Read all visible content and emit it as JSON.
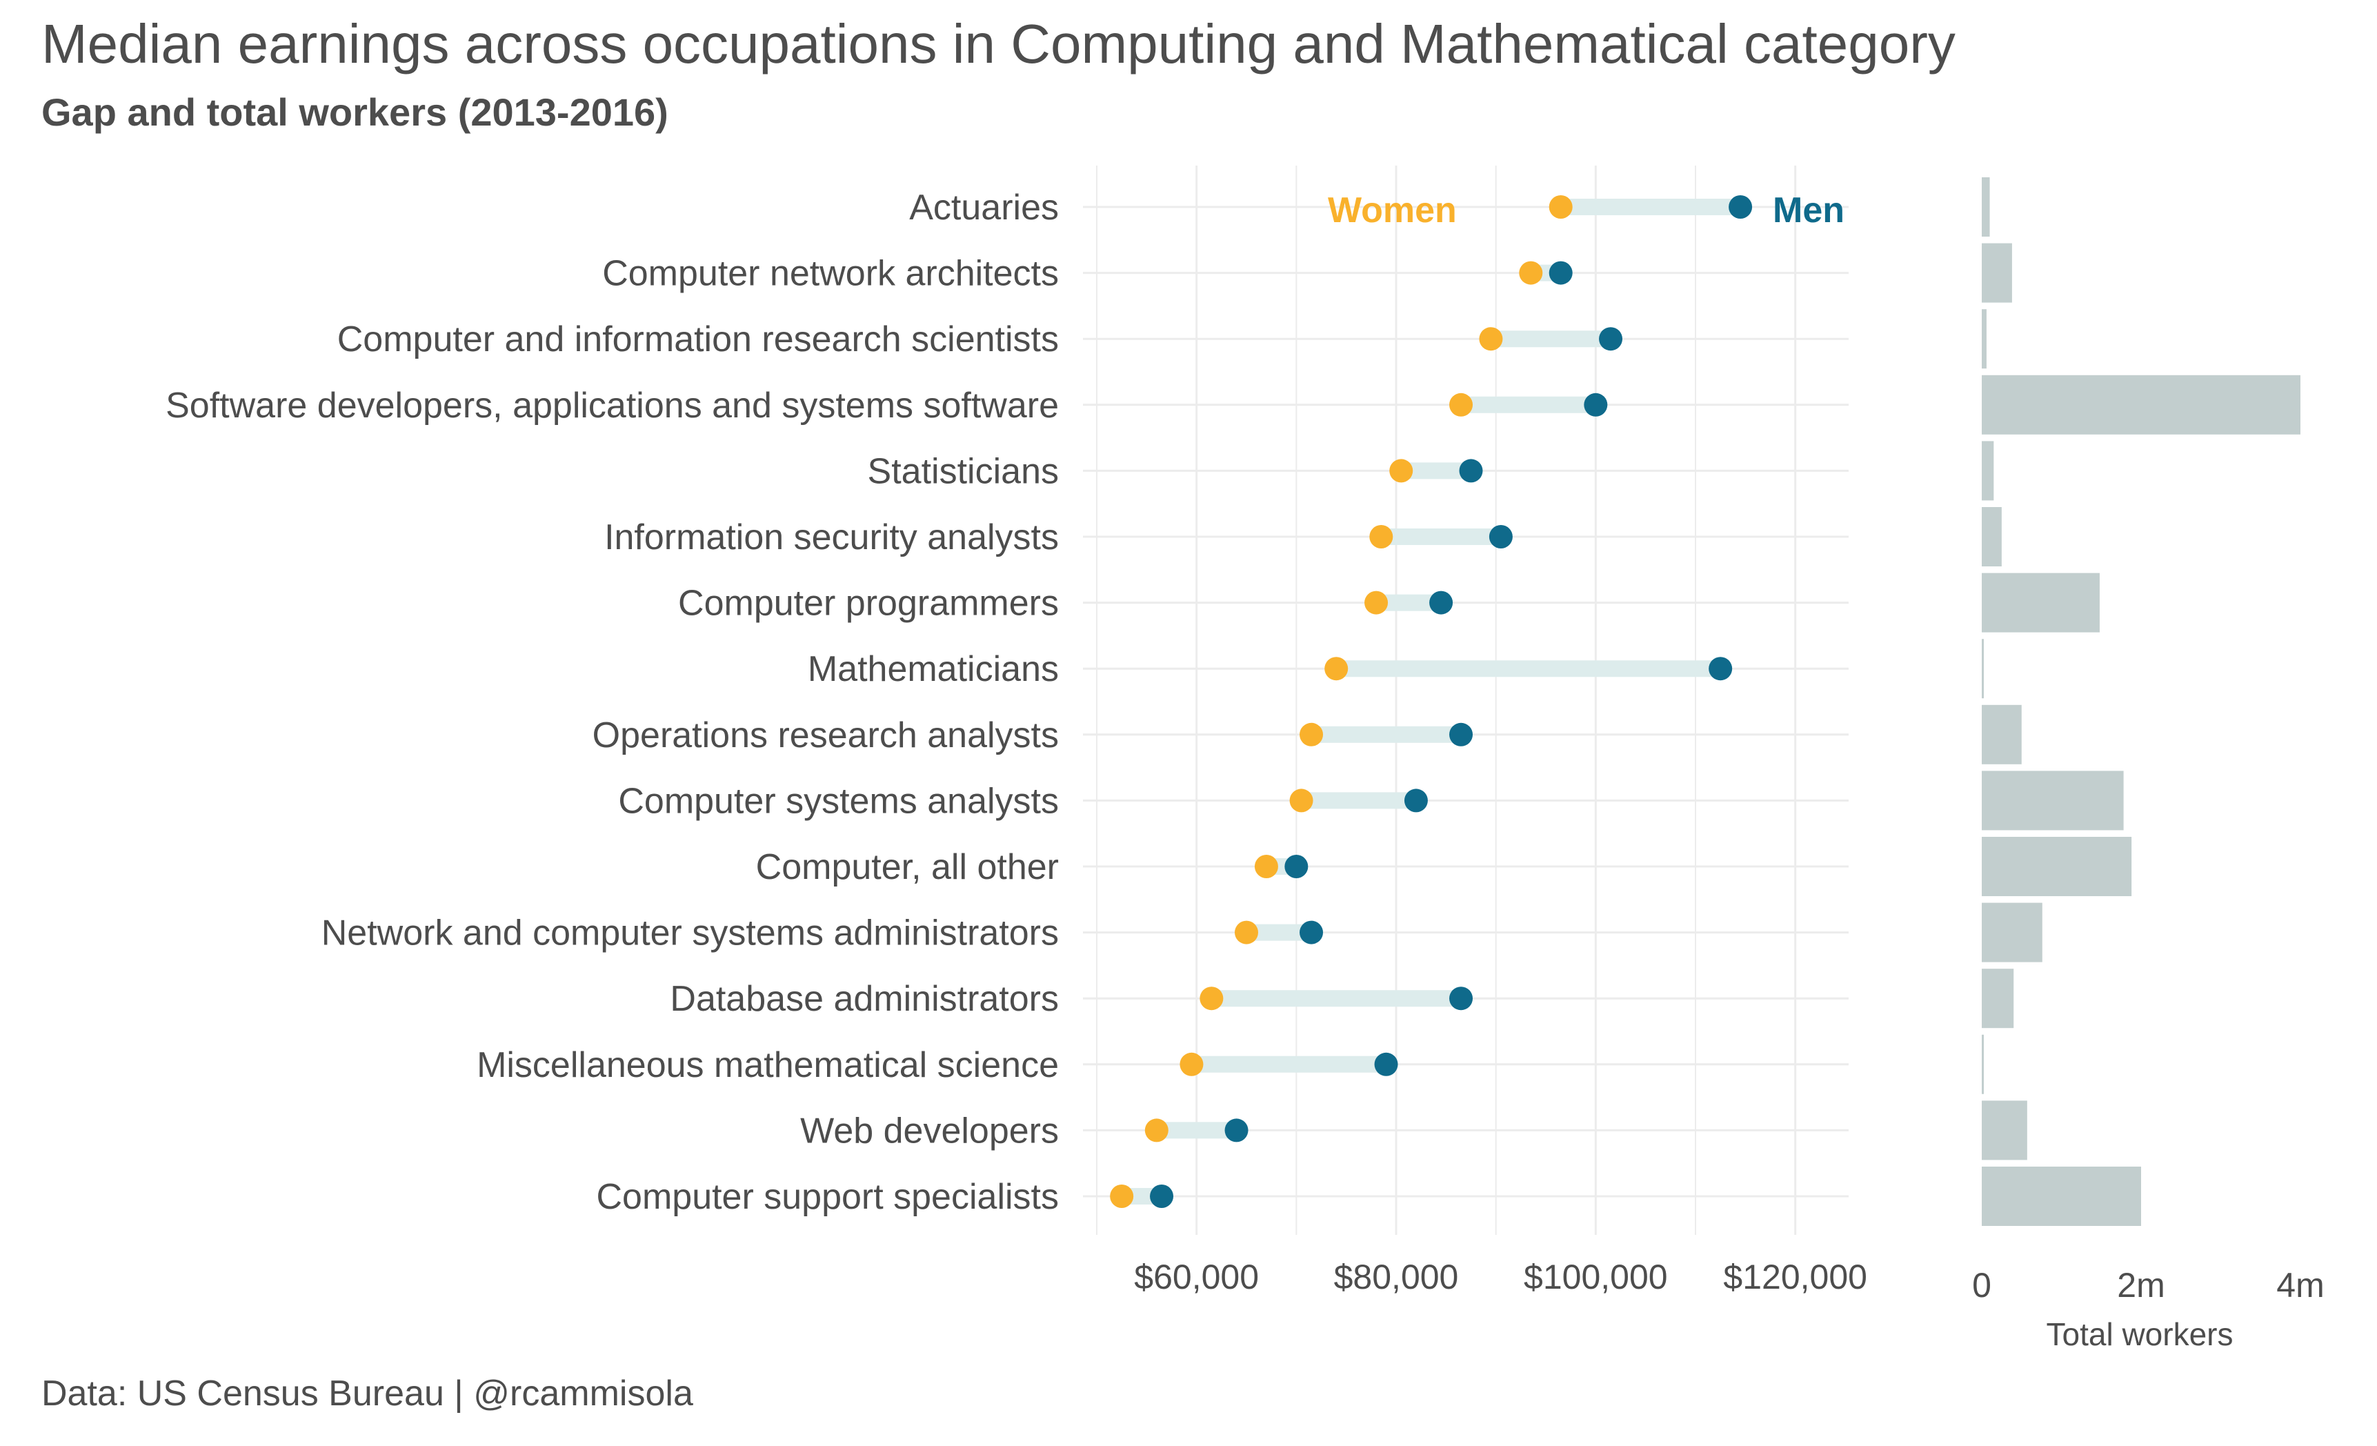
{
  "title": "Median earnings across occupations in Computing and Mathematical category",
  "subtitle": "Gap and total workers (2013-2016)",
  "caption": "Data: US Census Bureau | @rcammisola",
  "colors": {
    "women": "#f9b12c",
    "men": "#0f6a8b",
    "gap": "#ddecec",
    "bars": "#c2cece",
    "grid": "#ececec"
  },
  "chart_data": [
    {
      "type": "dumbbell",
      "legend": {
        "women_label": "Women",
        "men_label": "Men",
        "placement": "inline-top"
      },
      "xlim": [
        50000,
        125000
      ],
      "x_ticks": [
        60000,
        80000,
        100000,
        120000
      ],
      "x_tick_labels": [
        "$60,000",
        "$80,000",
        "$100,000",
        "$120,000"
      ],
      "grid": true,
      "categories": [
        "Actuaries",
        "Computer network architects",
        "Computer and information research scientists",
        "Software developers, applications and systems software",
        "Statisticians",
        "Information security analysts",
        "Computer programmers",
        "Mathematicians",
        "Operations research analysts",
        "Computer systems analysts",
        "Computer, all other",
        "Network and computer systems administrators",
        "Database administrators",
        "Miscellaneous mathematical science",
        "Web developers",
        "Computer support specialists"
      ],
      "series": [
        {
          "name": "Women",
          "values": [
            96500,
            93500,
            89500,
            86500,
            80500,
            78500,
            78000,
            74000,
            71500,
            70500,
            67000,
            65000,
            61500,
            59500,
            56000,
            52500
          ]
        },
        {
          "name": "Men",
          "values": [
            114500,
            96500,
            101500,
            100000,
            87500,
            90500,
            84500,
            112500,
            86500,
            82000,
            70000,
            71500,
            86500,
            79000,
            64000,
            56500
          ]
        }
      ]
    },
    {
      "type": "bar",
      "orientation": "horizontal",
      "xlabel": "Total workers",
      "xlim": [
        0,
        4000000
      ],
      "x_ticks": [
        0,
        2000000,
        4000000
      ],
      "x_tick_labels": [
        "0",
        "2m",
        "4m"
      ],
      "categories": [
        "Actuaries",
        "Computer network architects",
        "Computer and information research scientists",
        "Software developers, applications and systems software",
        "Statisticians",
        "Information security analysts",
        "Computer programmers",
        "Mathematicians",
        "Operations research analysts",
        "Computer systems analysts",
        "Computer, all other",
        "Network and computer systems administrators",
        "Database administrators",
        "Miscellaneous mathematical science",
        "Web developers",
        "Computer support specialists"
      ],
      "values": [
        100000,
        380000,
        60000,
        4000000,
        150000,
        250000,
        1480000,
        20000,
        500000,
        1780000,
        1880000,
        760000,
        400000,
        20000,
        570000,
        2000000
      ]
    }
  ]
}
